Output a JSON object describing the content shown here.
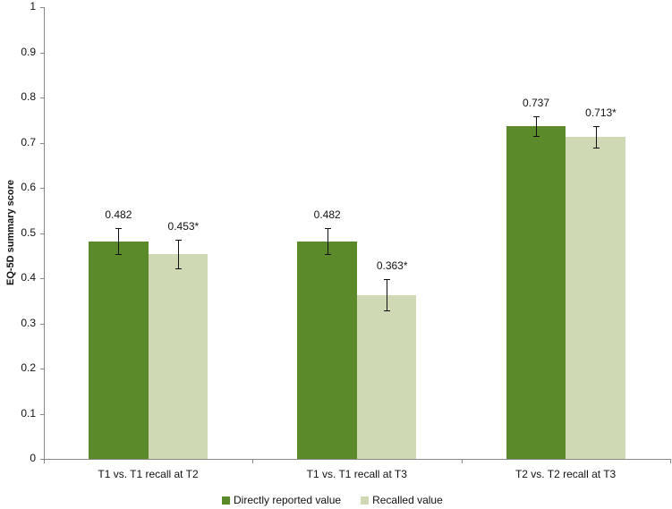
{
  "chart_data": {
    "type": "bar",
    "title": "",
    "xlabel": "",
    "ylabel": "EQ-5D summary score",
    "ylim": [
      0,
      1
    ],
    "yticks": [
      "0",
      "0.1",
      "0.2",
      "0.3",
      "0.4",
      "0.5",
      "0.6",
      "0.7",
      "0.8",
      "0.9",
      "1"
    ],
    "grid": false,
    "legend_position": "bottom",
    "categories": [
      "T1 vs. T1 recall at T2",
      "T1 vs. T1 recall at T3",
      "T2 vs. T2 recall at T3"
    ],
    "series": [
      {
        "name": "Directly reported value",
        "color": "#5a8a2a",
        "values": [
          0.482,
          0.482,
          0.737
        ],
        "labels": [
          "0.482",
          "0.482",
          "0.737"
        ],
        "error_low": [
          0.454,
          0.454,
          0.715
        ],
        "error_high": [
          0.51,
          0.51,
          0.759
        ]
      },
      {
        "name": "Recalled value",
        "color": "#cfdab4",
        "values": [
          0.453,
          0.363,
          0.713
        ],
        "labels": [
          "0.453*",
          "0.363*",
          "0.713*"
        ],
        "error_low": [
          0.421,
          0.328,
          0.69
        ],
        "error_high": [
          0.485,
          0.398,
          0.737
        ]
      }
    ]
  }
}
